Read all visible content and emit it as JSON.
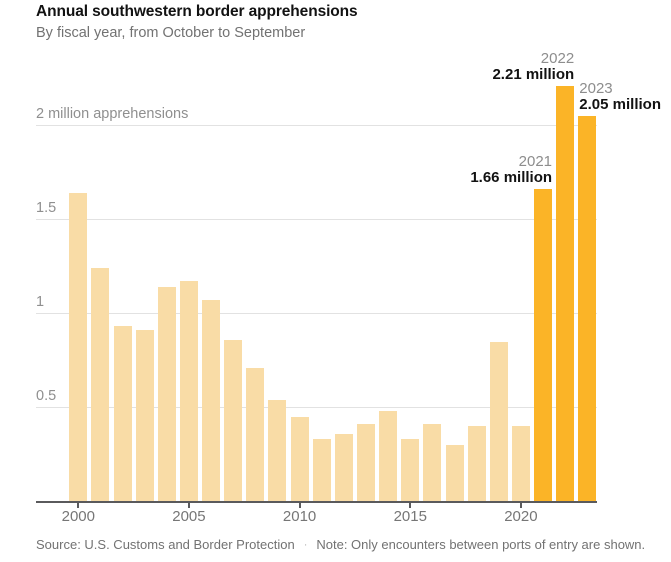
{
  "header": {
    "title": "Annual southwestern border apprehensions",
    "subtitle": "By fiscal year, from October to September"
  },
  "chart_data": {
    "type": "bar",
    "title": "Annual southwestern border apprehensions",
    "subtitle": "By fiscal year, from October to September",
    "unit": "million apprehensions",
    "categories": [
      "2000",
      "2001",
      "2002",
      "2003",
      "2004",
      "2005",
      "2006",
      "2007",
      "2008",
      "2009",
      "2010",
      "2011",
      "2012",
      "2013",
      "2014",
      "2015",
      "2016",
      "2017",
      "2018",
      "2019",
      "2020",
      "2021",
      "2022",
      "2023"
    ],
    "values": [
      1.64,
      1.24,
      0.93,
      0.91,
      1.14,
      1.17,
      1.07,
      0.86,
      0.71,
      0.54,
      0.45,
      0.33,
      0.36,
      0.41,
      0.48,
      0.33,
      0.41,
      0.3,
      0.4,
      0.85,
      0.4,
      1.66,
      2.21,
      2.05
    ],
    "highlighted_categories": [
      "2021",
      "2022",
      "2023"
    ],
    "ylim": [
      0,
      2.35
    ],
    "grid": "horizontal",
    "legend": "none",
    "y_axis": [
      {
        "value": 0.5,
        "label": "0.5"
      },
      {
        "value": 1,
        "label": "1"
      },
      {
        "value": 1.5,
        "label": "1.5"
      },
      {
        "value": 2,
        "label": "2 million apprehensions"
      }
    ],
    "x_ticks": [
      "2000",
      "2005",
      "2010",
      "2015",
      "2020"
    ],
    "annotations": [
      {
        "category": "2021",
        "year_label": "2021",
        "value_label": "1.66 million",
        "align": "right"
      },
      {
        "category": "2022",
        "year_label": "2022",
        "value_label": "2.21 million",
        "align": "right"
      },
      {
        "category": "2023",
        "year_label": "2023",
        "value_label": "2.05 million",
        "align": "left"
      }
    ],
    "colors": {
      "bar": "#F9DCA6",
      "bar_highlight": "#FBB427",
      "gridline": "#E2E2E2",
      "axis": "#5A5A5C",
      "title_text": "#121212",
      "muted_text": "#727272",
      "axis_text": "#8F8F8F"
    }
  },
  "footer": {
    "source": "Source: U.S. Customs and Border Protection",
    "separator": "·",
    "note": "Note: Only encounters between ports of entry are shown."
  }
}
